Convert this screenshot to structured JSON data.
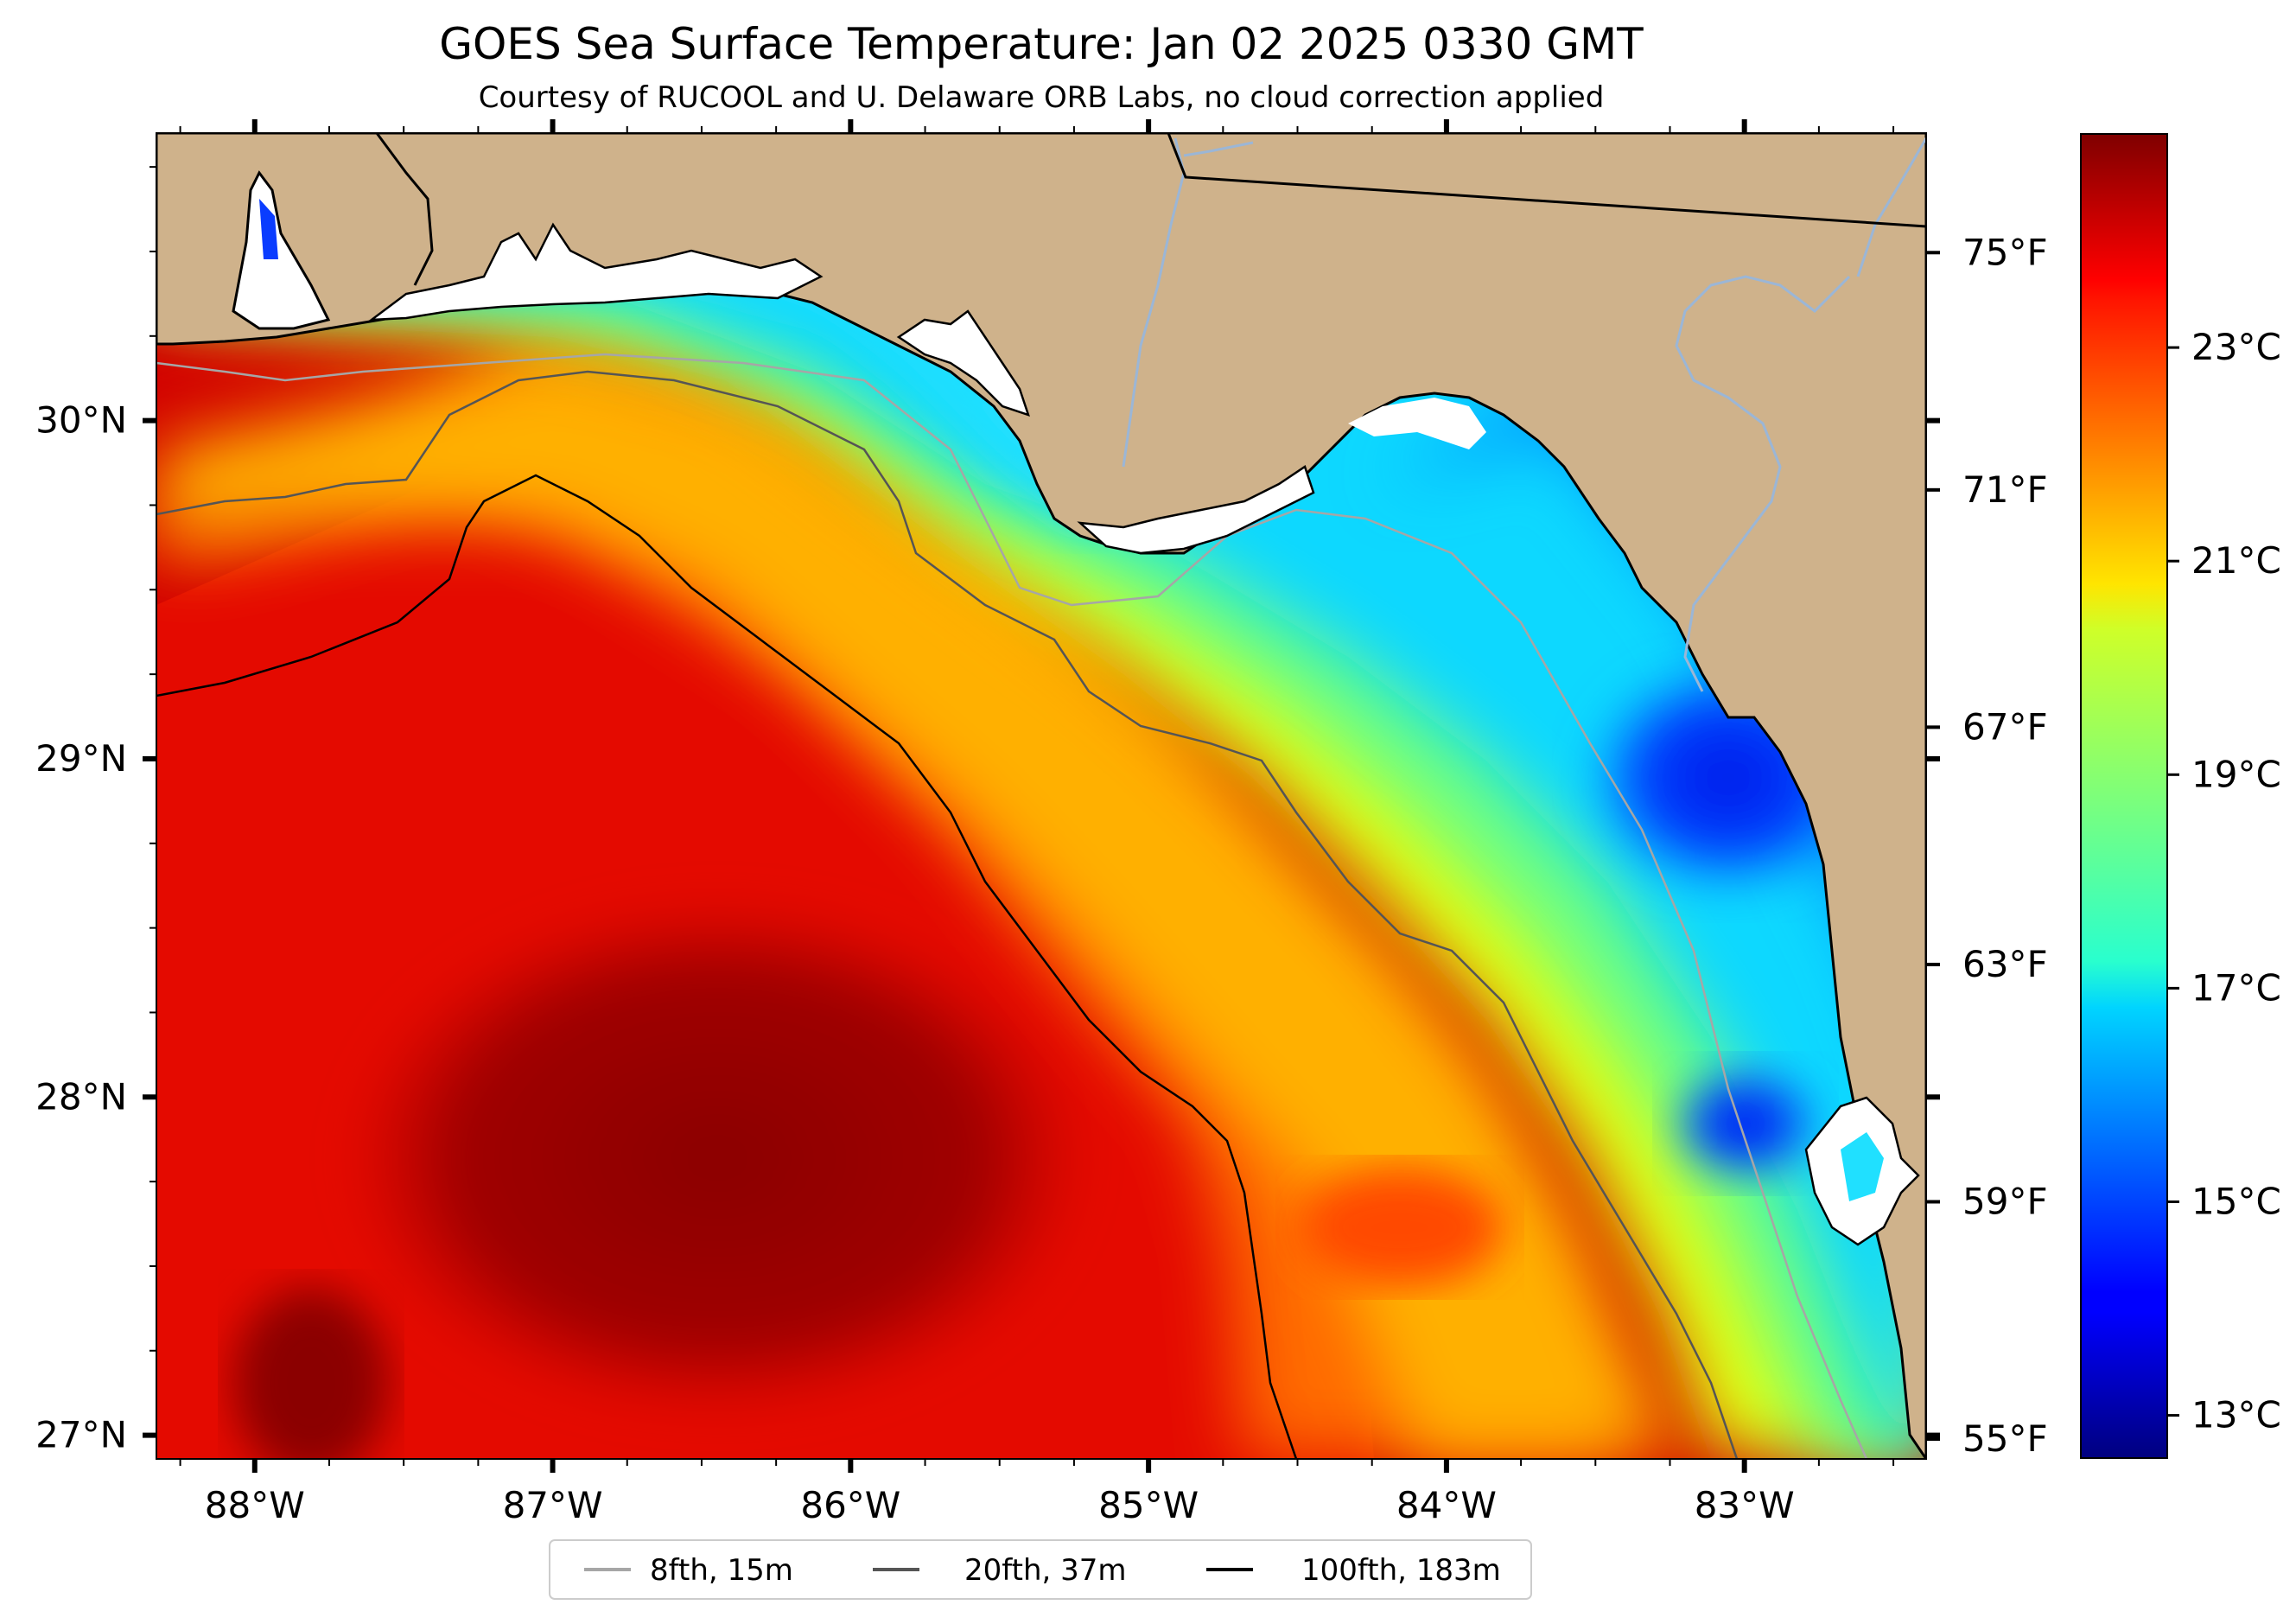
{
  "title": "GOES Sea Surface Temperature: Jan 02 2025 0330 GMT",
  "subtitle": "Courtesy of RUCOOL and U. Delaware ORB Labs, no cloud correction applied",
  "map": {
    "lon_range": [
      -88.33,
      -82.39
    ],
    "lat_range": [
      26.93,
      30.85
    ],
    "lon_ticks": [
      {
        "value": -88,
        "label": "88°W"
      },
      {
        "value": -87,
        "label": "87°W"
      },
      {
        "value": -86,
        "label": "86°W"
      },
      {
        "value": -85,
        "label": "85°W"
      },
      {
        "value": -84,
        "label": "84°W"
      },
      {
        "value": -83,
        "label": "83°W"
      }
    ],
    "lat_ticks": [
      {
        "value": 27,
        "label": "27°N"
      },
      {
        "value": 28,
        "label": "28°N"
      },
      {
        "value": 29,
        "label": "29°N"
      },
      {
        "value": 30,
        "label": "30°N"
      }
    ],
    "fahrenheit_ticks": [
      {
        "value": 55,
        "label": "55°F"
      },
      {
        "value": 59,
        "label": "59°F"
      },
      {
        "value": 63,
        "label": "63°F"
      },
      {
        "value": 67,
        "label": "67°F"
      },
      {
        "value": 71,
        "label": "71°F"
      },
      {
        "value": 75,
        "label": "75°F"
      }
    ],
    "land_color": "#cfb28b",
    "river_color": "#9bb6d6"
  },
  "colorbar": {
    "range_c": [
      12.6,
      25.0
    ],
    "ticks": [
      {
        "value": 13,
        "label": "13°C"
      },
      {
        "value": 15,
        "label": "15°C"
      },
      {
        "value": 17,
        "label": "17°C"
      },
      {
        "value": 19,
        "label": "19°C"
      },
      {
        "value": 21,
        "label": "21°C"
      },
      {
        "value": 23,
        "label": "23°C"
      }
    ],
    "colormap": "jet"
  },
  "legend": {
    "placement": "bottom-center",
    "items": [
      {
        "label": "8fth, 15m",
        "color": "#a6a6a6"
      },
      {
        "label": "20fth, 37m",
        "color": "#555555"
      },
      {
        "label": "100fth, 183m",
        "color": "#000000"
      }
    ]
  }
}
